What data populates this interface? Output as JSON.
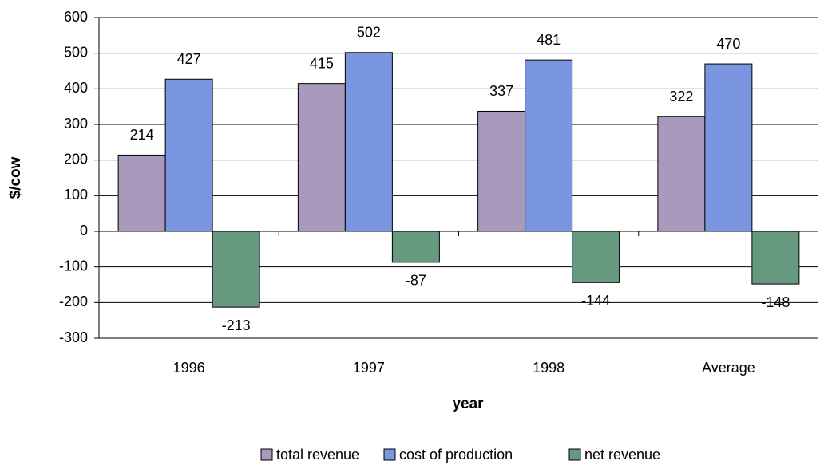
{
  "chart_data": {
    "type": "bar",
    "categories": [
      "1996",
      "1997",
      "1998",
      "Average"
    ],
    "series": [
      {
        "name": "total revenue",
        "color": "#a899bd",
        "values": [
          214,
          415,
          337,
          322
        ]
      },
      {
        "name": "cost of production",
        "color": "#7b96e0",
        "values": [
          427,
          502,
          481,
          470
        ]
      },
      {
        "name": "net revenue",
        "color": "#669980",
        "values": [
          -213,
          -87,
          -144,
          -148
        ]
      }
    ],
    "ylim": [
      -300,
      600
    ],
    "yticks": [
      -300,
      -200,
      -100,
      0,
      100,
      200,
      300,
      400,
      500,
      600
    ],
    "ylabel": "$/cow",
    "xlabel": "year",
    "grid": true,
    "legend": "bottom"
  }
}
